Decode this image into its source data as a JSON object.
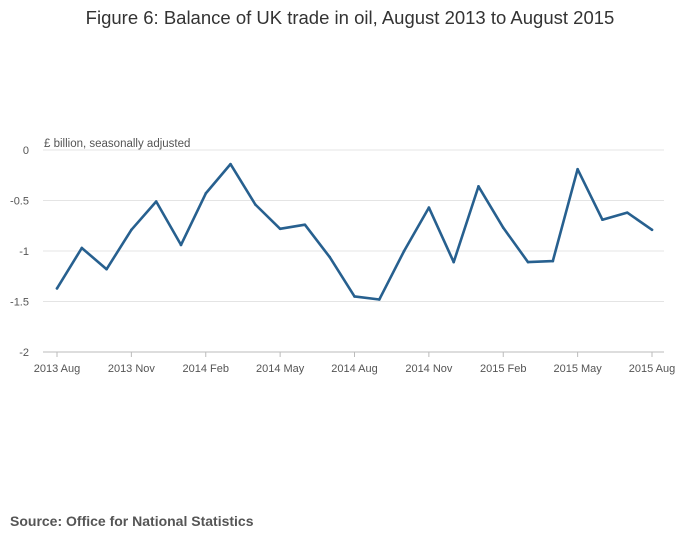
{
  "chart_data": {
    "type": "line",
    "title": "Figure 6: Balance of UK trade in oil, August 2013 to August 2015",
    "ylabel": "£ billion, seasonally adjusted",
    "xlabel": "",
    "ylim": [
      -2,
      0
    ],
    "yticks": [
      0,
      -0.5,
      -1,
      -1.5,
      -2
    ],
    "ytick_labels": [
      "0",
      "-0.5",
      "-1",
      "-1.5",
      "-2"
    ],
    "grid": true,
    "x": [
      "2013 Aug",
      "2013 Sep",
      "2013 Oct",
      "2013 Nov",
      "2013 Dec",
      "2014 Jan",
      "2014 Feb",
      "2014 Mar",
      "2014 Apr",
      "2014 May",
      "2014 Jun",
      "2014 Jul",
      "2014 Aug",
      "2014 Sep",
      "2014 Oct",
      "2014 Nov",
      "2014 Dec",
      "2015 Jan",
      "2015 Feb",
      "2015 Mar",
      "2015 Apr",
      "2015 May",
      "2015 Jun",
      "2015 Jul",
      "2015 Aug"
    ],
    "xtick_labels": [
      "2013 Aug",
      "2013 Nov",
      "2014 Feb",
      "2014 May",
      "2014 Aug",
      "2014 Nov",
      "2015 Feb",
      "2015 May",
      "2015 Aug"
    ],
    "series": [
      {
        "values": [
          -1.37,
          -0.97,
          -1.18,
          -0.79,
          -0.51,
          -0.94,
          -0.43,
          -0.14,
          -0.54,
          -0.78,
          -0.74,
          -1.06,
          -1.45,
          -1.48,
          -1.0,
          -0.57,
          -1.11,
          -0.36,
          -0.77,
          -1.11,
          -1.1,
          -0.19,
          -0.69,
          -0.62,
          -0.79
        ],
        "color": "#27608f"
      }
    ],
    "colors": {
      "line": "#27608f",
      "grid": "#e4e4e4",
      "axis": "#bbbbbb"
    }
  },
  "source": "Source: Office for National Statistics"
}
